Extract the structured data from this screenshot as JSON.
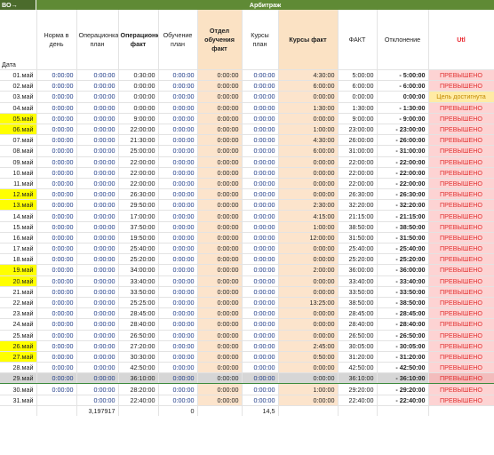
{
  "corner_label": "ВО→",
  "group_title": "Арбитраж",
  "columns": {
    "date": "Дата",
    "norm": "Норма в день",
    "op_plan": "Операционка план",
    "op_fact": "Операционка факт",
    "train_plan": "Обучение план",
    "dept_fact": "Отдел обучения факт",
    "course_plan": "Курсы план",
    "course_fact": "Курсы факт",
    "fact": "ФАКТ",
    "dev": "Отклонение",
    "utl": "Utl"
  },
  "rows": [
    {
      "date": "01.май",
      "hl": false,
      "norm": "0:00:00",
      "op_plan": "0:00:00",
      "op_fact": "0:30:00",
      "train_plan": "0:00:00",
      "dept_fact": "0:00:00",
      "course_plan": "0:00:00",
      "course_fact": "4:30:00",
      "fact": "5:00:00",
      "dev": "- 5:00:00",
      "status": "ПРЕВЫШЕНО",
      "ok": false
    },
    {
      "date": "02.май",
      "hl": false,
      "norm": "0:00:00",
      "op_plan": "0:00:00",
      "op_fact": "0:00:00",
      "train_plan": "0:00:00",
      "dept_fact": "0:00:00",
      "course_plan": "0:00:00",
      "course_fact": "6:00:00",
      "fact": "6:00:00",
      "dev": "- 6:00:00",
      "status": "ПРЕВЫШЕНО",
      "ok": false
    },
    {
      "date": "03.май",
      "hl": false,
      "norm": "0:00:00",
      "op_plan": "0:00:00",
      "op_fact": "0:00:00",
      "train_plan": "0:00:00",
      "dept_fact": "0:00:00",
      "course_plan": "0:00:00",
      "course_fact": "0:00:00",
      "fact": "0:00:00",
      "dev": "0:00:00",
      "status": "Цель достигнута",
      "ok": true
    },
    {
      "date": "04.май",
      "hl": false,
      "norm": "0:00:00",
      "op_plan": "0:00:00",
      "op_fact": "0:00:00",
      "train_plan": "0:00:00",
      "dept_fact": "0:00:00",
      "course_plan": "0:00:00",
      "course_fact": "1:30:00",
      "fact": "1:30:00",
      "dev": "- 1:30:00",
      "status": "ПРЕВЫШЕНО",
      "ok": false
    },
    {
      "date": "05.май",
      "hl": true,
      "norm": "0:00:00",
      "op_plan": "0:00:00",
      "op_fact": "9:00:00",
      "train_plan": "0:00:00",
      "dept_fact": "0:00:00",
      "course_plan": "0:00:00",
      "course_fact": "0:00:00",
      "fact": "9:00:00",
      "dev": "- 9:00:00",
      "status": "ПРЕВЫШЕНО",
      "ok": false
    },
    {
      "date": "06.май",
      "hl": true,
      "norm": "0:00:00",
      "op_plan": "0:00:00",
      "op_fact": "22:00:00",
      "train_plan": "0:00:00",
      "dept_fact": "0:00:00",
      "course_plan": "0:00:00",
      "course_fact": "1:00:00",
      "fact": "23:00:00",
      "dev": "- 23:00:00",
      "status": "ПРЕВЫШЕНО",
      "ok": false
    },
    {
      "date": "07.май",
      "hl": false,
      "norm": "0:00:00",
      "op_plan": "0:00:00",
      "op_fact": "21:30:00",
      "train_plan": "0:00:00",
      "dept_fact": "0:00:00",
      "course_plan": "0:00:00",
      "course_fact": "4:30:00",
      "fact": "26:00:00",
      "dev": "- 26:00:00",
      "status": "ПРЕВЫШЕНО",
      "ok": false
    },
    {
      "date": "08.май",
      "hl": false,
      "norm": "0:00:00",
      "op_plan": "0:00:00",
      "op_fact": "25:00:00",
      "train_plan": "0:00:00",
      "dept_fact": "0:00:00",
      "course_plan": "0:00:00",
      "course_fact": "6:00:00",
      "fact": "31:00:00",
      "dev": "- 31:00:00",
      "status": "ПРЕВЫШЕНО",
      "ok": false
    },
    {
      "date": "09.май",
      "hl": false,
      "norm": "0:00:00",
      "op_plan": "0:00:00",
      "op_fact": "22:00:00",
      "train_plan": "0:00:00",
      "dept_fact": "0:00:00",
      "course_plan": "0:00:00",
      "course_fact": "0:00:00",
      "fact": "22:00:00",
      "dev": "- 22:00:00",
      "status": "ПРЕВЫШЕНО",
      "ok": false
    },
    {
      "date": "10.май",
      "hl": false,
      "norm": "0:00:00",
      "op_plan": "0:00:00",
      "op_fact": "22:00:00",
      "train_plan": "0:00:00",
      "dept_fact": "0:00:00",
      "course_plan": "0:00:00",
      "course_fact": "0:00:00",
      "fact": "22:00:00",
      "dev": "- 22:00:00",
      "status": "ПРЕВЫШЕНО",
      "ok": false
    },
    {
      "date": "11.май",
      "hl": false,
      "norm": "0:00:00",
      "op_plan": "0:00:00",
      "op_fact": "22:00:00",
      "train_plan": "0:00:00",
      "dept_fact": "0:00:00",
      "course_plan": "0:00:00",
      "course_fact": "0:00:00",
      "fact": "22:00:00",
      "dev": "- 22:00:00",
      "status": "ПРЕВЫШЕНО",
      "ok": false
    },
    {
      "date": "12.май",
      "hl": true,
      "norm": "0:00:00",
      "op_plan": "0:00:00",
      "op_fact": "26:30:00",
      "train_plan": "0:00:00",
      "dept_fact": "0:00:00",
      "course_plan": "0:00:00",
      "course_fact": "0:00:00",
      "fact": "26:30:00",
      "dev": "- 26:30:00",
      "status": "ПРЕВЫШЕНО",
      "ok": false
    },
    {
      "date": "13.май",
      "hl": true,
      "norm": "0:00:00",
      "op_plan": "0:00:00",
      "op_fact": "29:50:00",
      "train_plan": "0:00:00",
      "dept_fact": "0:00:00",
      "course_plan": "0:00:00",
      "course_fact": "2:30:00",
      "fact": "32:20:00",
      "dev": "- 32:20:00",
      "status": "ПРЕВЫШЕНО",
      "ok": false
    },
    {
      "date": "14.май",
      "hl": false,
      "norm": "0:00:00",
      "op_plan": "0:00:00",
      "op_fact": "17:00:00",
      "train_plan": "0:00:00",
      "dept_fact": "0:00:00",
      "course_plan": "0:00:00",
      "course_fact": "4:15:00",
      "fact": "21:15:00",
      "dev": "- 21:15:00",
      "status": "ПРЕВЫШЕНО",
      "ok": false
    },
    {
      "date": "15.май",
      "hl": false,
      "norm": "0:00:00",
      "op_plan": "0:00:00",
      "op_fact": "37:50:00",
      "train_plan": "0:00:00",
      "dept_fact": "0:00:00",
      "course_plan": "0:00:00",
      "course_fact": "1:00:00",
      "fact": "38:50:00",
      "dev": "- 38:50:00",
      "status": "ПРЕВЫШЕНО",
      "ok": false
    },
    {
      "date": "16.май",
      "hl": false,
      "norm": "0:00:00",
      "op_plan": "0:00:00",
      "op_fact": "19:50:00",
      "train_plan": "0:00:00",
      "dept_fact": "0:00:00",
      "course_plan": "0:00:00",
      "course_fact": "12:00:00",
      "fact": "31:50:00",
      "dev": "- 31:50:00",
      "status": "ПРЕВЫШЕНО",
      "ok": false
    },
    {
      "date": "17.май",
      "hl": false,
      "norm": "0:00:00",
      "op_plan": "0:00:00",
      "op_fact": "25:40:00",
      "train_plan": "0:00:00",
      "dept_fact": "0:00:00",
      "course_plan": "0:00:00",
      "course_fact": "0:00:00",
      "fact": "25:40:00",
      "dev": "- 25:40:00",
      "status": "ПРЕВЫШЕНО",
      "ok": false
    },
    {
      "date": "18.май",
      "hl": false,
      "norm": "0:00:00",
      "op_plan": "0:00:00",
      "op_fact": "25:20:00",
      "train_plan": "0:00:00",
      "dept_fact": "0:00:00",
      "course_plan": "0:00:00",
      "course_fact": "0:00:00",
      "fact": "25:20:00",
      "dev": "- 25:20:00",
      "status": "ПРЕВЫШЕНО",
      "ok": false
    },
    {
      "date": "19.май",
      "hl": true,
      "norm": "0:00:00",
      "op_plan": "0:00:00",
      "op_fact": "34:00:00",
      "train_plan": "0:00:00",
      "dept_fact": "0:00:00",
      "course_plan": "0:00:00",
      "course_fact": "2:00:00",
      "fact": "36:00:00",
      "dev": "- 36:00:00",
      "status": "ПРЕВЫШЕНО",
      "ok": false
    },
    {
      "date": "20.май",
      "hl": true,
      "norm": "0:00:00",
      "op_plan": "0:00:00",
      "op_fact": "33:40:00",
      "train_plan": "0:00:00",
      "dept_fact": "0:00:00",
      "course_plan": "0:00:00",
      "course_fact": "0:00:00",
      "fact": "33:40:00",
      "dev": "- 33:40:00",
      "status": "ПРЕВЫШЕНО",
      "ok": false
    },
    {
      "date": "21.май",
      "hl": false,
      "norm": "0:00:00",
      "op_plan": "0:00:00",
      "op_fact": "33:50:00",
      "train_plan": "0:00:00",
      "dept_fact": "0:00:00",
      "course_plan": "0:00:00",
      "course_fact": "0:00:00",
      "fact": "33:50:00",
      "dev": "- 33:50:00",
      "status": "ПРЕВЫШЕНО",
      "ok": false
    },
    {
      "date": "22.май",
      "hl": false,
      "norm": "0:00:00",
      "op_plan": "0:00:00",
      "op_fact": "25:25:00",
      "train_plan": "0:00:00",
      "dept_fact": "0:00:00",
      "course_plan": "0:00:00",
      "course_fact": "13:25:00",
      "fact": "38:50:00",
      "dev": "- 38:50:00",
      "status": "ПРЕВЫШЕНО",
      "ok": false
    },
    {
      "date": "23.май",
      "hl": false,
      "norm": "0:00:00",
      "op_plan": "0:00:00",
      "op_fact": "28:45:00",
      "train_plan": "0:00:00",
      "dept_fact": "0:00:00",
      "course_plan": "0:00:00",
      "course_fact": "0:00:00",
      "fact": "28:45:00",
      "dev": "- 28:45:00",
      "status": "ПРЕВЫШЕНО",
      "ok": false
    },
    {
      "date": "24.май",
      "hl": false,
      "norm": "0:00:00",
      "op_plan": "0:00:00",
      "op_fact": "28:40:00",
      "train_plan": "0:00:00",
      "dept_fact": "0:00:00",
      "course_plan": "0:00:00",
      "course_fact": "0:00:00",
      "fact": "28:40:00",
      "dev": "- 28:40:00",
      "status": "ПРЕВЫШЕНО",
      "ok": false
    },
    {
      "date": "25.май",
      "hl": false,
      "norm": "0:00:00",
      "op_plan": "0:00:00",
      "op_fact": "26:50:00",
      "train_plan": "0:00:00",
      "dept_fact": "0:00:00",
      "course_plan": "0:00:00",
      "course_fact": "0:00:00",
      "fact": "26:50:00",
      "dev": "- 26:50:00",
      "status": "ПРЕВЫШЕНО",
      "ok": false
    },
    {
      "date": "26.май",
      "hl": true,
      "norm": "0:00:00",
      "op_plan": "0:00:00",
      "op_fact": "27:20:00",
      "train_plan": "0:00:00",
      "dept_fact": "0:00:00",
      "course_plan": "0:00:00",
      "course_fact": "2:45:00",
      "fact": "30:05:00",
      "dev": "- 30:05:00",
      "status": "ПРЕВЫШЕНО",
      "ok": false
    },
    {
      "date": "27.май",
      "hl": true,
      "norm": "0:00:00",
      "op_plan": "0:00:00",
      "op_fact": "30:30:00",
      "train_plan": "0:00:00",
      "dept_fact": "0:00:00",
      "course_plan": "0:00:00",
      "course_fact": "0:50:00",
      "fact": "31:20:00",
      "dev": "- 31:20:00",
      "status": "ПРЕВЫШЕНО",
      "ok": false
    },
    {
      "date": "28.май",
      "hl": false,
      "norm": "0:00:00",
      "op_plan": "0:00:00",
      "op_fact": "42:50:00",
      "train_plan": "0:00:00",
      "dept_fact": "0:00:00",
      "course_plan": "0:00:00",
      "course_fact": "0:00:00",
      "fact": "42:50:00",
      "dev": "- 42:50:00",
      "status": "ПРЕВЫШЕНО",
      "ok": false
    },
    {
      "date": "29.май",
      "hl": false,
      "sel": true,
      "norm": "0:00:00",
      "op_plan": "0:00:00",
      "op_fact": "36:10:00",
      "train_plan": "0:00:00",
      "dept_fact": "0:00:00",
      "course_plan": "0:00:00",
      "course_fact": "0:00:00",
      "fact": "36:10:00",
      "dev": "- 36:10:00",
      "status": "ПРЕВЫШЕНО",
      "ok": false
    },
    {
      "date": "30.май",
      "hl": false,
      "norm": "0:00:00",
      "op_plan": "0:00:00",
      "op_fact": "28:20:00",
      "train_plan": "0:00:00",
      "dept_fact": "0:00:00",
      "course_plan": "0:00:00",
      "course_fact": "1:00:00",
      "fact": "29:20:00",
      "dev": "- 29:20:00",
      "status": "ПРЕВЫШЕНО",
      "ok": false
    },
    {
      "date": "31.май",
      "hl": false,
      "norm": "",
      "op_plan": "0:00:00",
      "op_fact": "22:40:00",
      "train_plan": "0:00:00",
      "dept_fact": "0:00:00",
      "course_plan": "0:00:00",
      "course_fact": "0:00:00",
      "fact": "22:40:00",
      "dev": "- 22:40:00",
      "status": "ПРЕВЫШЕНО",
      "ok": false
    }
  ],
  "totals": {
    "op_plan": "3,197917",
    "train_plan": "0",
    "course_plan": "14,5"
  },
  "colors": {
    "group_header": "#5f8a35",
    "highlight_date": "#ffff00",
    "status_over_bg": "#fdd3d3",
    "status_over_text": "#e03030",
    "status_ok_bg": "#ffeba5",
    "peach": "#fce4cc"
  }
}
